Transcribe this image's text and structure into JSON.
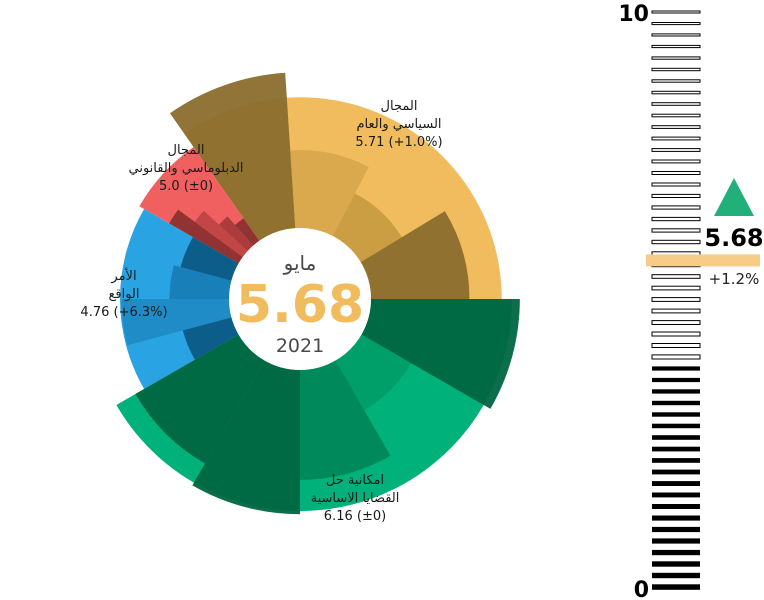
{
  "center": {
    "month": "مايو",
    "value": "5.68",
    "year": "2021"
  },
  "colors": {
    "value_text": "#f0bc5e",
    "up_arrow": "#22b07a",
    "gauge_marker": "#f7cc88"
  },
  "chart_data": {
    "type": "radial-bar",
    "scale_max": 10,
    "segments": [
      {
        "name": "political",
        "label_lines": [
          "المجال",
          "السياسي والعام",
          "5.71 (+1.0%)"
        ],
        "value": 5.71,
        "change": "+1.0%",
        "color": "#f0bc5e",
        "dark": "#8b6d2d",
        "mid": "#c89c42",
        "light": "#d8a64c",
        "sub_values": [
          6.8,
          3.4,
          2.1,
          4.3
        ]
      },
      {
        "name": "diplomatic",
        "label_lines": [
          "المجال",
          "الدبلوماسي والقانوني",
          "5.0 (±0)"
        ],
        "value": 5.0,
        "change": "±0",
        "color": "#f16060",
        "dark": "#8b3030",
        "mid": "#a83a3a",
        "light": "#c04545",
        "sub_values": [
          3.5,
          2.6,
          1.7,
          1.2
        ]
      },
      {
        "name": "reality",
        "label_lines": [
          "الأمر",
          "الواقع",
          "4.76 (+6.3%)"
        ],
        "value": 4.76,
        "change": "+6.3%",
        "color": "#29a3e2",
        "dark": "#0c5a85",
        "mid": "#177db5",
        "light": "#1f8bc6",
        "sub_values": [
          2.2,
          4.7,
          2.6,
          2.3
        ]
      },
      {
        "name": "core-issues",
        "label_lines": [
          "امكانية حل",
          "القضايا الاساسية",
          "6.16 (±0)"
        ],
        "value": 6.16,
        "change": "±0",
        "color": "#00b27a",
        "dark": "#006642",
        "mid": "#00875a",
        "light": "#009d68",
        "sub_values": [
          6.5,
          2.5,
          4.8,
          6.3,
          5.2
        ]
      }
    ],
    "gauge": {
      "min": 0,
      "max": 10,
      "value": 5.68,
      "change": "+1.2%",
      "direction": "up",
      "tick_labels": [
        "10",
        "0"
      ]
    }
  }
}
